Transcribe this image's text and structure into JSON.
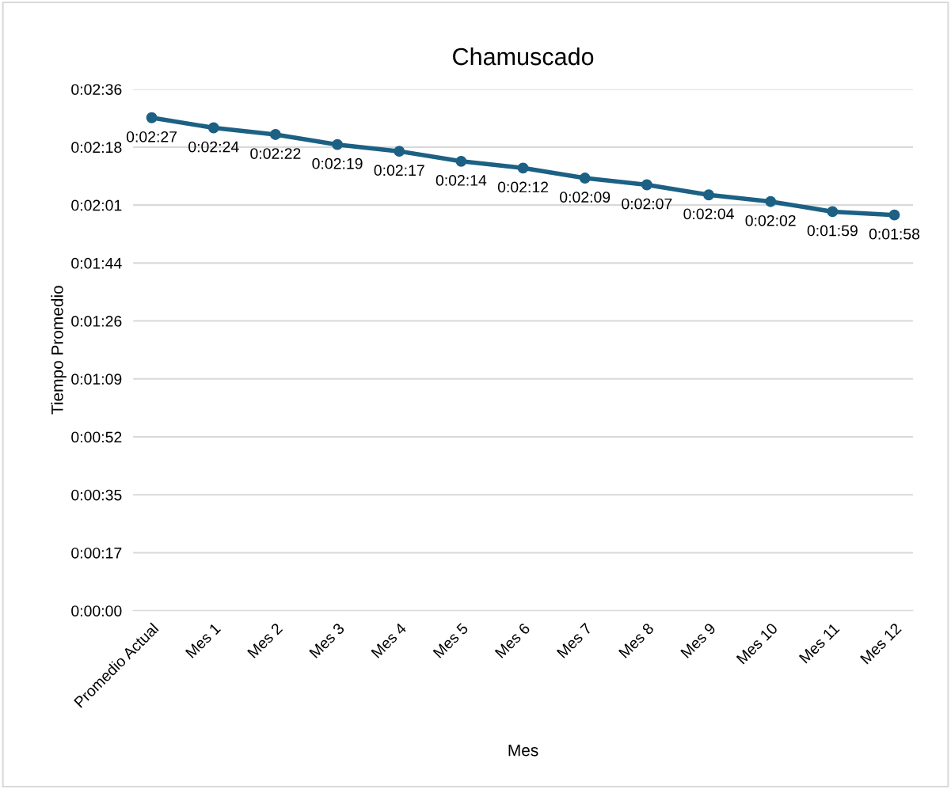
{
  "chart_data": {
    "type": "line",
    "title": "Chamuscado",
    "xlabel": "Mes",
    "ylabel": "Tiempo Promedio",
    "categories": [
      "Promedio Actual",
      "Mes 1",
      "Mes 2",
      "Mes 3",
      "Mes 4",
      "Mes 5",
      "Mes 6",
      "Mes 7",
      "Mes 8",
      "Mes 9",
      "Mes 10",
      "Mes 11",
      "Mes 12"
    ],
    "series": [
      {
        "color": "#1c6184",
        "values": [
          147,
          144,
          142,
          139,
          137,
          134,
          132,
          129,
          127,
          124,
          122,
          119,
          118
        ],
        "value_labels": [
          "0:02:27",
          "0:02:24",
          "0:02:22",
          "0:02:19",
          "0:02:17",
          "0:02:14",
          "0:02:12",
          "0:02:09",
          "0:02:07",
          "0:02:04",
          "0:02:02",
          "0:01:59",
          "0:01:58"
        ]
      }
    ],
    "ylim": [
      0,
      155.52
    ],
    "yticks": [
      {
        "value": 0,
        "label": "0:00:00"
      },
      {
        "value": 17.28,
        "label": "0:00:17"
      },
      {
        "value": 34.56,
        "label": "0:00:35"
      },
      {
        "value": 51.84,
        "label": "0:00:52"
      },
      {
        "value": 69.12,
        "label": "0:01:09"
      },
      {
        "value": 86.4,
        "label": "0:01:26"
      },
      {
        "value": 103.68,
        "label": "0:01:44"
      },
      {
        "value": 120.96,
        "label": "0:02:01"
      },
      {
        "value": 138.24,
        "label": "0:02:18"
      },
      {
        "value": 155.52,
        "label": "0:02:36"
      }
    ],
    "grid": "y",
    "marker": "circle",
    "line_style": "solid",
    "legend": false
  }
}
